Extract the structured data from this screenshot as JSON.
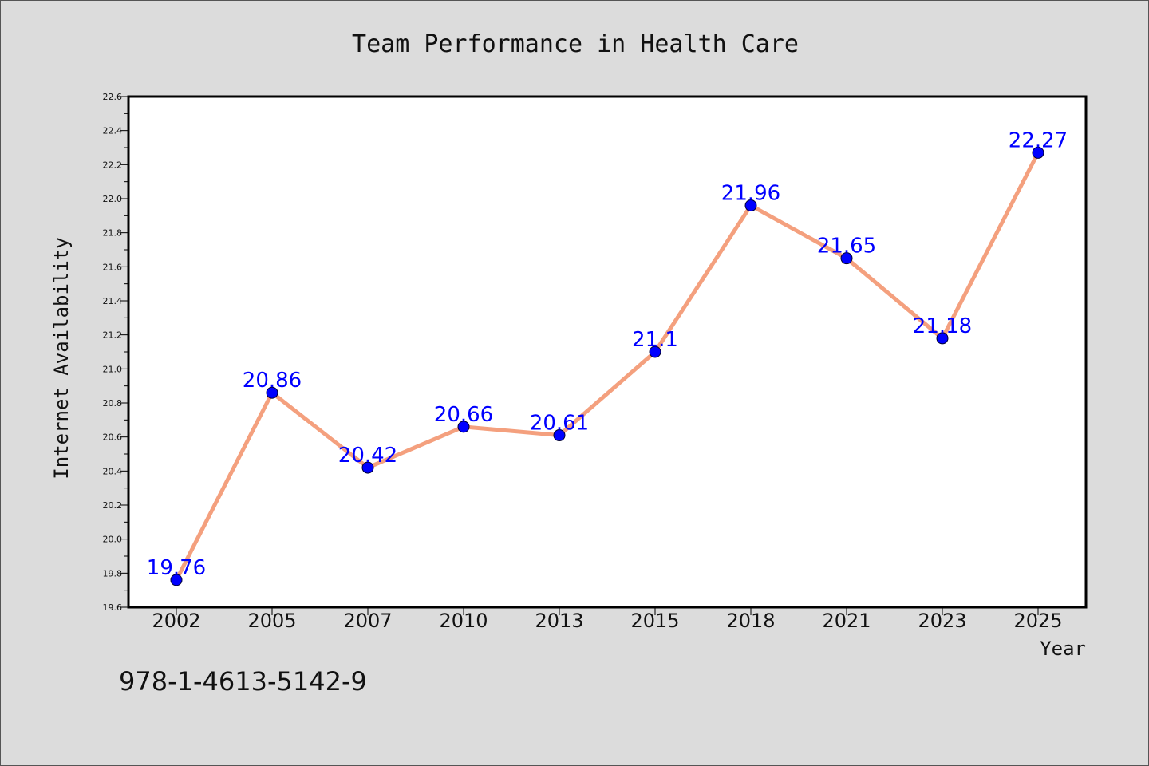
{
  "chart_data": {
    "type": "line",
    "title": "Team Performance in Health Care",
    "xlabel": "Year",
    "ylabel": "Internet Availability",
    "categories": [
      "2002",
      "2005",
      "2007",
      "2010",
      "2013",
      "2015",
      "2018",
      "2021",
      "2023",
      "2025"
    ],
    "series": [
      {
        "values": [
          19.76,
          20.86,
          20.42,
          20.66,
          20.61,
          21.1,
          21.96,
          21.65,
          21.18,
          22.27
        ]
      }
    ],
    "data_labels": [
      "19.76",
      "20.86",
      "20.42",
      "20.66",
      "20.61",
      "21.1",
      "21.96",
      "21.65",
      "21.18",
      "22.27"
    ],
    "ylim": [
      19.6,
      22.6
    ],
    "yticks": [
      "19.6",
      "19.8",
      "20.0",
      "20.2",
      "20.4",
      "20.6",
      "20.8",
      "21.0",
      "21.2",
      "21.4",
      "21.6",
      "21.8",
      "22.0",
      "22.2",
      "22.4",
      "22.6"
    ],
    "grid": false,
    "colors": {
      "line": "#f4a07e",
      "marker": "#0000ff",
      "label": "#0000ff"
    }
  },
  "footer": {
    "code": "978-1-4613-5142-9"
  }
}
